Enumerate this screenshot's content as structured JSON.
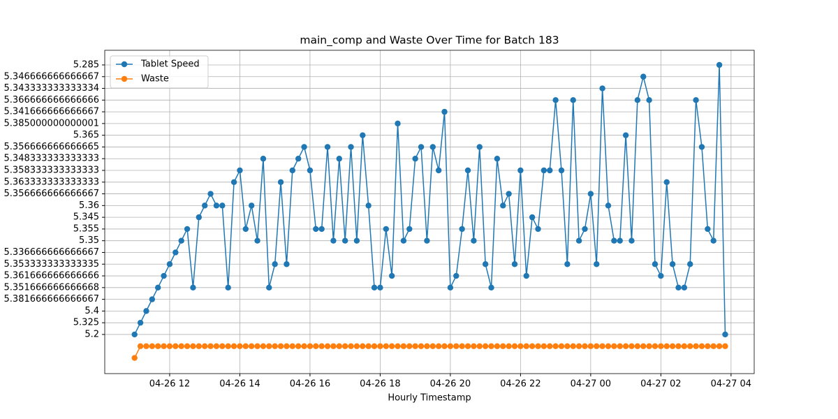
{
  "chart_data": {
    "type": "line",
    "title": "main_comp and Waste Over Time for Batch 183",
    "x_label": "Hourly Timestamp",
    "x": [
      11,
      11.1667,
      11.3333,
      11.5,
      11.6667,
      11.8333,
      12,
      12.1667,
      12.3333,
      12.5,
      12.6667,
      12.8333,
      13,
      13.1667,
      13.3333,
      13.5,
      13.6667,
      13.8333,
      14,
      14.1667,
      14.3333,
      14.5,
      14.6667,
      14.8333,
      15,
      15.1667,
      15.3333,
      15.5,
      15.6667,
      15.8333,
      16,
      16.1667,
      16.3333,
      16.5,
      16.6667,
      16.8333,
      17,
      17.1667,
      17.3333,
      17.5,
      17.6667,
      17.8333,
      18,
      18.1667,
      18.3333,
      18.5,
      18.6667,
      18.8333,
      19,
      19.1667,
      19.3333,
      19.5,
      19.6667,
      19.8333,
      20,
      20.1667,
      20.3333,
      20.5,
      20.6667,
      20.8333,
      21,
      21.1667,
      21.3333,
      21.5,
      21.6667,
      21.8333,
      22,
      22.1667,
      22.3333,
      22.5,
      22.6667,
      22.8333,
      23,
      23.1667,
      23.3333,
      23.5,
      23.6667,
      23.8333,
      24,
      24.1667,
      24.3333,
      24.5,
      24.6667,
      24.8333,
      25,
      25.1667,
      25.3333,
      25.5,
      25.6667,
      25.8333,
      26,
      26.1667,
      26.3333,
      26.5,
      26.6667,
      26.8333,
      27,
      27.1667,
      27.3333,
      27.5,
      27.6667,
      27.8333
    ],
    "series": [
      {
        "name": "Tablet Speed",
        "color": "#1f77b4",
        "values": [
          0,
          1,
          2,
          3,
          4,
          5,
          6,
          7,
          8,
          9,
          4,
          10,
          11,
          12,
          11,
          11,
          4,
          13,
          14,
          9,
          11,
          8,
          15,
          4,
          6,
          13,
          6,
          14,
          15,
          16,
          14,
          9,
          9,
          16,
          8,
          15,
          8,
          16,
          8,
          17,
          11,
          4,
          4,
          9,
          5,
          18,
          8,
          9,
          15,
          16,
          8,
          16,
          14,
          19,
          4,
          5,
          9,
          14,
          8,
          16,
          6,
          4,
          15,
          11,
          12,
          6,
          14,
          5,
          10,
          9,
          14,
          14,
          20,
          14,
          6,
          20,
          8,
          9,
          12,
          6,
          21,
          11,
          8,
          8,
          17,
          8,
          20,
          22,
          20,
          6,
          5,
          13,
          6,
          4,
          4,
          6,
          20,
          16,
          9,
          8,
          23,
          0
        ]
      },
      {
        "name": "Waste",
        "color": "#ff7f0e",
        "values": [
          -2,
          -1,
          -1,
          -1,
          -1,
          -1,
          -1,
          -1,
          -1,
          -1,
          -1,
          -1,
          -1,
          -1,
          -1,
          -1,
          -1,
          -1,
          -1,
          -1,
          -1,
          -1,
          -1,
          -1,
          -1,
          -1,
          -1,
          -1,
          -1,
          -1,
          -1,
          -1,
          -1,
          -1,
          -1,
          -1,
          -1,
          -1,
          -1,
          -1,
          -1,
          -1,
          -1,
          -1,
          -1,
          -1,
          -1,
          -1,
          -1,
          -1,
          -1,
          -1,
          -1,
          -1,
          -1,
          -1,
          -1,
          -1,
          -1,
          -1,
          -1,
          -1,
          -1,
          -1,
          -1,
          -1,
          -1,
          -1,
          -1,
          -1,
          -1,
          -1,
          -1,
          -1,
          -1,
          -1,
          -1,
          -1,
          -1,
          -1,
          -1,
          -1,
          -1,
          -1,
          -1,
          -1,
          -1,
          -1,
          -1,
          -1,
          -1,
          -1,
          -1,
          -1,
          -1,
          -1,
          -1,
          -1,
          -1,
          -1,
          -1,
          -1
        ]
      }
    ],
    "xlim": [
      10.15,
      28.66
    ],
    "xticks": [
      {
        "value": 12,
        "label": "04-26 12"
      },
      {
        "value": 14,
        "label": "04-26 14"
      },
      {
        "value": 16,
        "label": "04-26 16"
      },
      {
        "value": 18,
        "label": "04-26 18"
      },
      {
        "value": 20,
        "label": "04-26 20"
      },
      {
        "value": 22,
        "label": "04-26 22"
      },
      {
        "value": 24,
        "label": "04-27 00"
      },
      {
        "value": 26,
        "label": "04-27 02"
      },
      {
        "value": 28,
        "label": "04-27 04"
      }
    ],
    "ylim": [
      -3.34,
      24.25
    ],
    "yticks": [
      {
        "value": 0,
        "label": "5.2"
      },
      {
        "value": 1,
        "label": "5.325"
      },
      {
        "value": 2,
        "label": "5.4"
      },
      {
        "value": 3,
        "label": "5.381666666666667"
      },
      {
        "value": 4,
        "label": "5.351666666666668"
      },
      {
        "value": 5,
        "label": "5.361666666666666"
      },
      {
        "value": 6,
        "label": "5.353333333333335"
      },
      {
        "value": 7,
        "label": "5.336666666666667"
      },
      {
        "value": 8,
        "label": "5.35"
      },
      {
        "value": 9,
        "label": "5.355"
      },
      {
        "value": 10,
        "label": "5.345"
      },
      {
        "value": 11,
        "label": "5.36"
      },
      {
        "value": 12,
        "label": "5.356666666666667"
      },
      {
        "value": 13,
        "label": "5.363333333333333"
      },
      {
        "value": 14,
        "label": "5.358333333333333"
      },
      {
        "value": 15,
        "label": "5.348333333333333"
      },
      {
        "value": 16,
        "label": "5.356666666666665"
      },
      {
        "value": 17,
        "label": "5.365"
      },
      {
        "value": 18,
        "label": "5.385000000000001"
      },
      {
        "value": 19,
        "label": "5.341666666666667"
      },
      {
        "value": 20,
        "label": "5.366666666666666"
      },
      {
        "value": 21,
        "label": "5.343333333333334"
      },
      {
        "value": 22,
        "label": "5.346666666666667"
      },
      {
        "value": 23,
        "label": "5.285"
      }
    ],
    "grid": true,
    "legend": "upper left"
  }
}
